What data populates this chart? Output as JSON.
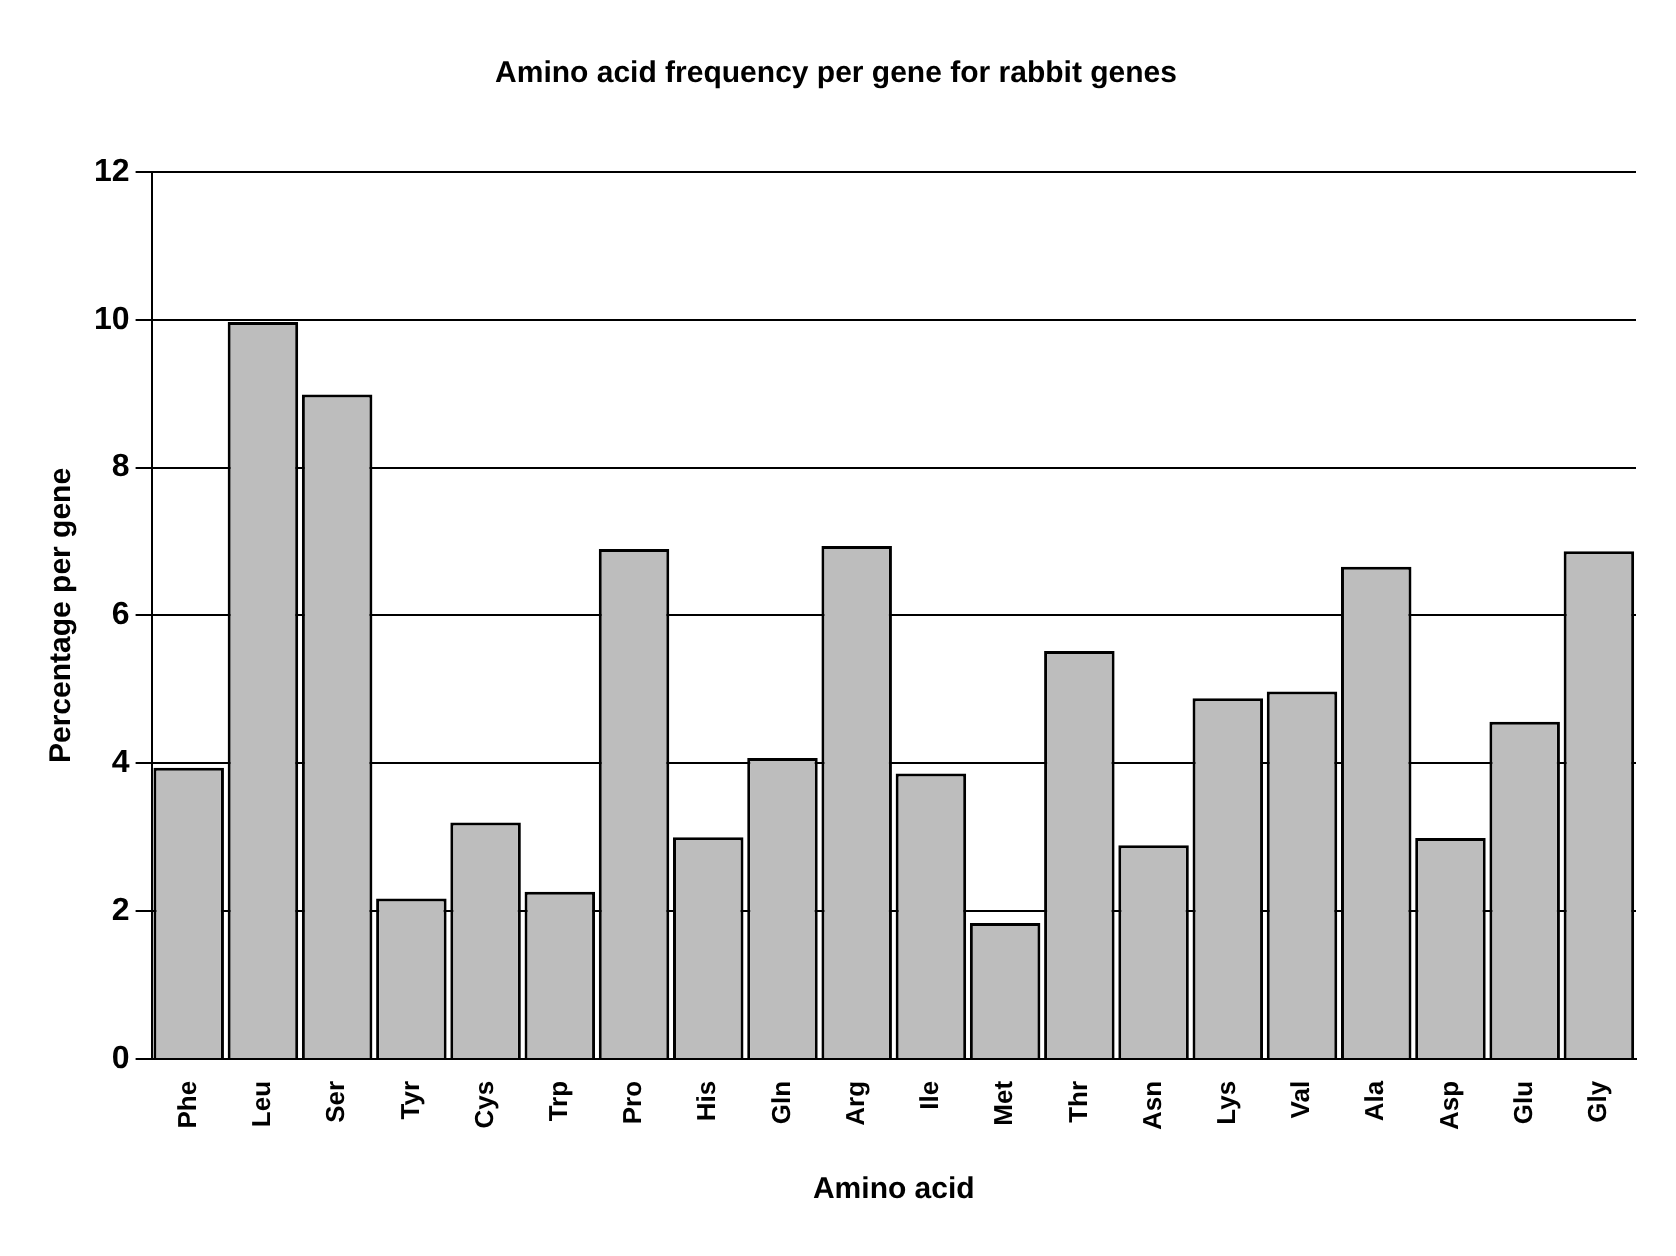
{
  "chart_data": {
    "type": "bar",
    "title": "Amino acid frequency per gene for rabbit genes",
    "xlabel": "Amino acid",
    "ylabel": "Percentage per gene",
    "categories": [
      "Phe",
      "Leu",
      "Ser",
      "Tyr",
      "Cys",
      "Trp",
      "Pro",
      "His",
      "Gln",
      "Arg",
      "Ile",
      "Met",
      "Thr",
      "Asn",
      "Lys",
      "Val",
      "Ala",
      "Asp",
      "Glu",
      "Gly"
    ],
    "values": [
      3.94,
      9.97,
      8.99,
      2.17,
      3.2,
      2.26,
      6.9,
      3.0,
      4.07,
      6.94,
      3.86,
      1.84,
      5.52,
      2.89,
      4.88,
      4.97,
      6.66,
      2.99,
      4.56,
      6.87
    ],
    "color": "#bdbdbd",
    "ylim": [
      0,
      12
    ],
    "yticks": [
      0,
      2,
      4,
      6,
      8,
      10,
      12
    ],
    "grid": "y",
    "legend": false
  }
}
